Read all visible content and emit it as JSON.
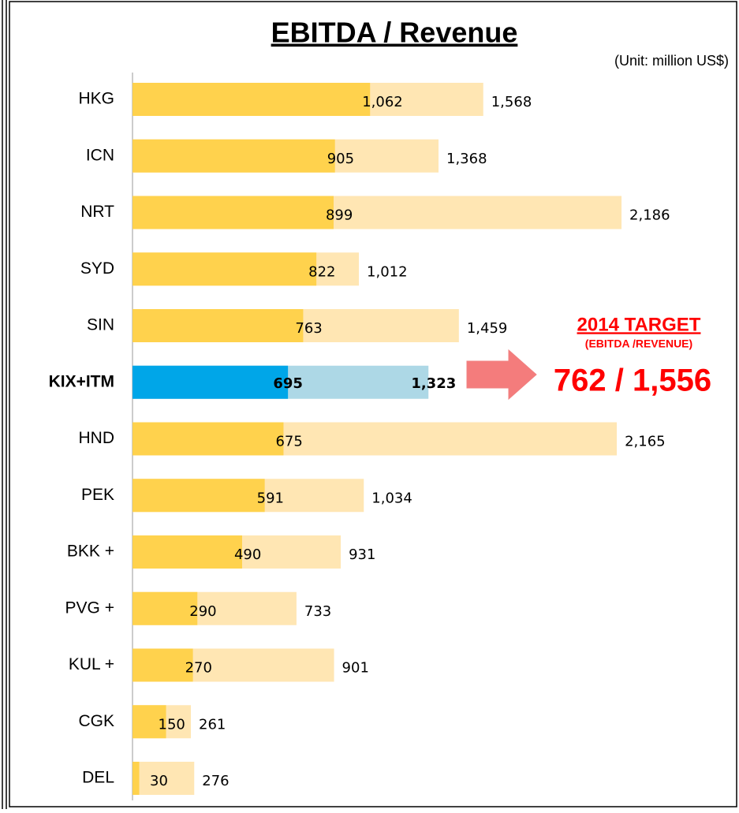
{
  "chart_data": {
    "type": "bar",
    "orientation": "horizontal",
    "title": "EBITDA / Revenue",
    "subtitle": "(Unit: million US$)",
    "categories": [
      "HKG",
      "ICN",
      "NRT",
      "SYD",
      "SIN",
      "KIX+ITM",
      "HND",
      "PEK",
      "BKK +",
      "PVG +",
      "KUL +",
      "CGK",
      "DEL"
    ],
    "series": [
      {
        "name": "EBITDA",
        "color": "#ffd24d",
        "highlight_color": "#00a6e8",
        "values": [
          1062,
          905,
          899,
          822,
          763,
          695,
          675,
          591,
          490,
          290,
          270,
          150,
          30
        ],
        "value_labels": [
          "1,062",
          "905",
          "899",
          "822",
          "763",
          "695",
          "675",
          "591",
          "490",
          "290",
          "270",
          "150",
          "30"
        ]
      },
      {
        "name": "Revenue",
        "color": "#ffe6b3",
        "highlight_color": "#add8e6",
        "values": [
          1568,
          1368,
          2186,
          1012,
          1459,
          1323,
          2165,
          1034,
          931,
          733,
          901,
          261,
          276
        ],
        "value_labels": [
          "1,568",
          "1,368",
          "2,186",
          "1,012",
          "1,459",
          "1,323",
          "2,165",
          "1,034",
          "931",
          "733",
          "901",
          "261",
          "276"
        ]
      }
    ],
    "highlight_index": 5,
    "xlim": [
      0,
      2200
    ],
    "annotations": [
      "2014 TARGET",
      "(EBITDA /REVENUE)",
      "762 / 1,556"
    ]
  }
}
